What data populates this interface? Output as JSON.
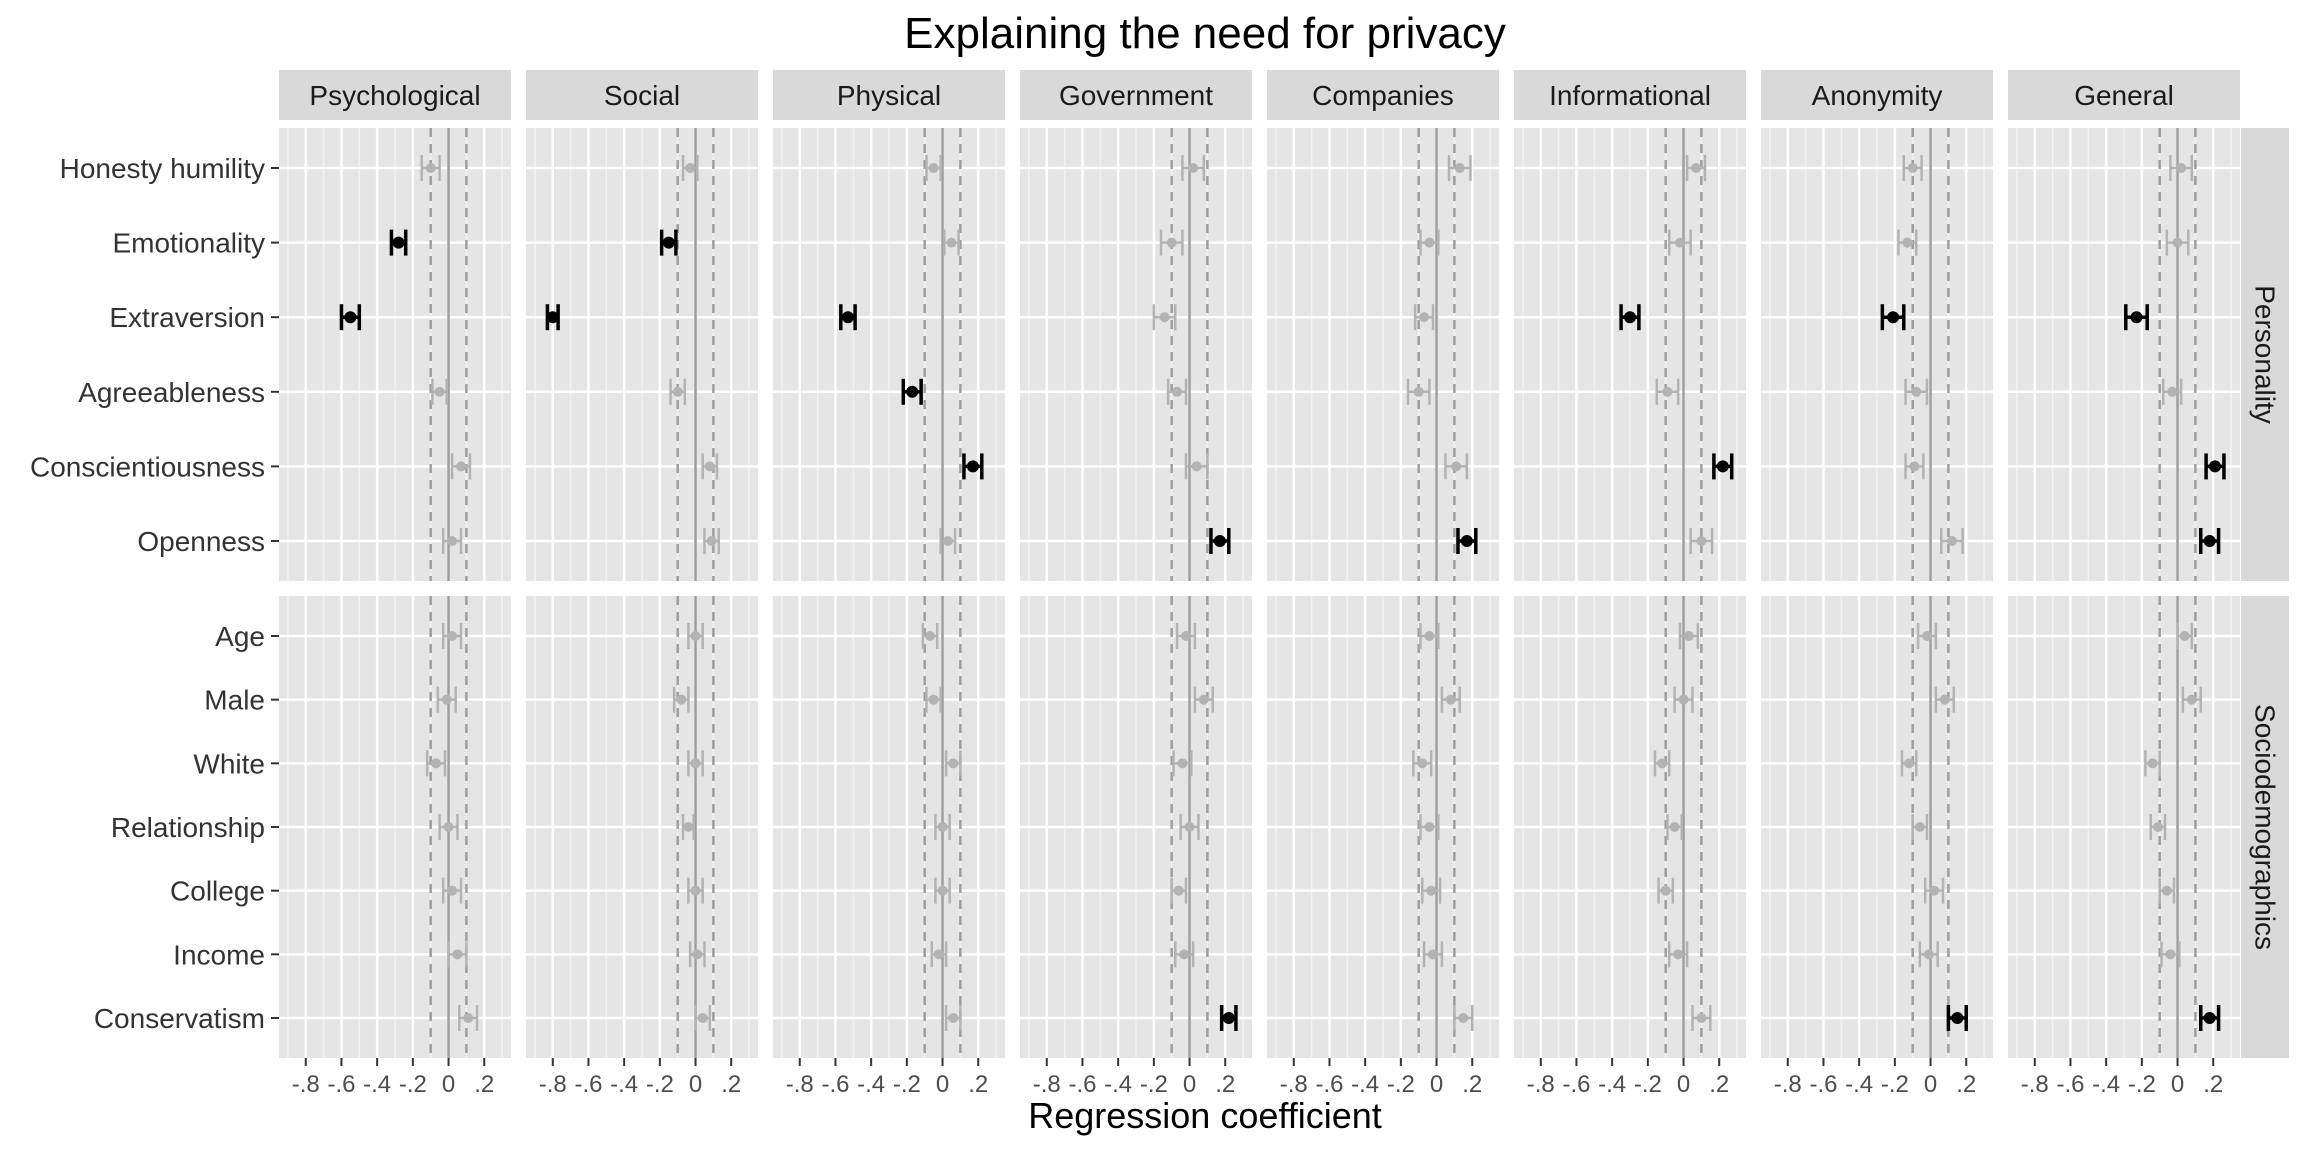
{
  "chart_data": {
    "type": "dot-and-whisker",
    "title": "Explaining the need for privacy",
    "xlabel": "Regression coefficient",
    "xlim": [
      -0.95,
      0.35
    ],
    "xticks": [
      -0.8,
      -0.6,
      -0.4,
      -0.2,
      0,
      0.2
    ],
    "xtick_labels": [
      "-.8",
      "-.6",
      "-.4",
      "-.2",
      "0",
      ".2"
    ],
    "reference_lines": {
      "solid": 0,
      "dashed": [
        -0.1,
        0.1
      ]
    },
    "columns": [
      "Psychological",
      "Social",
      "Physical",
      "Government",
      "Companies",
      "Informational",
      "Anonymity",
      "General"
    ],
    "rows": [
      {
        "name": "Personality",
        "variables": [
          "Honesty humility",
          "Emotionality",
          "Extraversion",
          "Agreeableness",
          "Conscientiousness",
          "Openness"
        ],
        "estimates": {
          "Psychological": [
            [
              -0.1,
              0.05,
              false
            ],
            [
              -0.28,
              0.04,
              true
            ],
            [
              -0.55,
              0.05,
              true
            ],
            [
              -0.05,
              0.04,
              false
            ],
            [
              0.07,
              0.05,
              false
            ],
            [
              0.02,
              0.05,
              false
            ]
          ],
          "Social": [
            [
              -0.03,
              0.04,
              false
            ],
            [
              -0.15,
              0.04,
              true
            ],
            [
              -0.8,
              0.03,
              true
            ],
            [
              -0.1,
              0.04,
              false
            ],
            [
              0.08,
              0.04,
              false
            ],
            [
              0.09,
              0.04,
              false
            ]
          ],
          "Physical": [
            [
              -0.05,
              0.04,
              false
            ],
            [
              0.05,
              0.04,
              false
            ],
            [
              -0.53,
              0.04,
              true
            ],
            [
              -0.17,
              0.05,
              true
            ],
            [
              0.17,
              0.05,
              true
            ],
            [
              0.03,
              0.04,
              false
            ]
          ],
          "Government": [
            [
              0.02,
              0.06,
              false
            ],
            [
              -0.1,
              0.06,
              false
            ],
            [
              -0.14,
              0.06,
              false
            ],
            [
              -0.07,
              0.05,
              false
            ],
            [
              0.04,
              0.06,
              false
            ],
            [
              0.17,
              0.05,
              true
            ]
          ],
          "Companies": [
            [
              0.13,
              0.06,
              false
            ],
            [
              -0.04,
              0.05,
              false
            ],
            [
              -0.07,
              0.05,
              false
            ],
            [
              -0.1,
              0.06,
              false
            ],
            [
              0.11,
              0.06,
              false
            ],
            [
              0.17,
              0.05,
              true
            ]
          ],
          "Informational": [
            [
              0.07,
              0.05,
              false
            ],
            [
              -0.02,
              0.06,
              false
            ],
            [
              -0.3,
              0.05,
              true
            ],
            [
              -0.09,
              0.06,
              false
            ],
            [
              0.22,
              0.05,
              true
            ],
            [
              0.1,
              0.06,
              false
            ]
          ],
          "Anonymity": [
            [
              -0.1,
              0.05,
              false
            ],
            [
              -0.13,
              0.05,
              false
            ],
            [
              -0.21,
              0.06,
              true
            ],
            [
              -0.08,
              0.06,
              false
            ],
            [
              -0.09,
              0.05,
              false
            ],
            [
              0.12,
              0.06,
              false
            ]
          ],
          "General": [
            [
              0.02,
              0.06,
              false
            ],
            [
              0.0,
              0.06,
              false
            ],
            [
              -0.23,
              0.06,
              true
            ],
            [
              -0.03,
              0.05,
              false
            ],
            [
              0.21,
              0.05,
              true
            ],
            [
              0.18,
              0.05,
              true
            ]
          ]
        }
      },
      {
        "name": "Sociodemographics",
        "variables": [
          "Age",
          "Male",
          "White",
          "Relationship",
          "College",
          "Income",
          "Conservatism"
        ],
        "estimates": {
          "Psychological": [
            [
              0.02,
              0.05,
              false
            ],
            [
              -0.01,
              0.05,
              false
            ],
            [
              -0.07,
              0.05,
              false
            ],
            [
              0.0,
              0.05,
              false
            ],
            [
              0.02,
              0.05,
              false
            ],
            [
              0.05,
              0.05,
              false
            ],
            [
              0.11,
              0.05,
              false
            ]
          ],
          "Social": [
            [
              0.0,
              0.04,
              false
            ],
            [
              -0.08,
              0.04,
              false
            ],
            [
              0.0,
              0.04,
              false
            ],
            [
              -0.04,
              0.03,
              false
            ],
            [
              0.0,
              0.04,
              false
            ],
            [
              0.01,
              0.04,
              false
            ],
            [
              0.04,
              0.04,
              false
            ]
          ],
          "Physical": [
            [
              -0.07,
              0.04,
              false
            ],
            [
              -0.05,
              0.04,
              false
            ],
            [
              0.06,
              0.04,
              false
            ],
            [
              0.0,
              0.04,
              false
            ],
            [
              0.0,
              0.04,
              false
            ],
            [
              -0.02,
              0.04,
              false
            ],
            [
              0.06,
              0.04,
              false
            ]
          ],
          "Government": [
            [
              -0.02,
              0.05,
              false
            ],
            [
              0.08,
              0.05,
              false
            ],
            [
              -0.04,
              0.05,
              false
            ],
            [
              0.0,
              0.05,
              false
            ],
            [
              -0.06,
              0.04,
              false
            ],
            [
              -0.03,
              0.05,
              false
            ],
            [
              0.22,
              0.04,
              true
            ]
          ],
          "Companies": [
            [
              -0.04,
              0.05,
              false
            ],
            [
              0.08,
              0.05,
              false
            ],
            [
              -0.08,
              0.05,
              false
            ],
            [
              -0.04,
              0.05,
              false
            ],
            [
              -0.03,
              0.05,
              false
            ],
            [
              -0.02,
              0.05,
              false
            ],
            [
              0.15,
              0.05,
              false
            ]
          ],
          "Informational": [
            [
              0.03,
              0.05,
              false
            ],
            [
              0.0,
              0.05,
              false
            ],
            [
              -0.12,
              0.04,
              false
            ],
            [
              -0.05,
              0.04,
              false
            ],
            [
              -0.1,
              0.04,
              false
            ],
            [
              -0.03,
              0.05,
              false
            ],
            [
              0.1,
              0.05,
              false
            ]
          ],
          "Anonymity": [
            [
              -0.02,
              0.05,
              false
            ],
            [
              0.08,
              0.05,
              false
            ],
            [
              -0.12,
              0.04,
              false
            ],
            [
              -0.06,
              0.04,
              false
            ],
            [
              0.02,
              0.05,
              false
            ],
            [
              -0.01,
              0.05,
              false
            ],
            [
              0.15,
              0.05,
              true
            ]
          ],
          "General": [
            [
              0.04,
              0.04,
              false
            ],
            [
              0.08,
              0.05,
              false
            ],
            [
              -0.14,
              0.04,
              false
            ],
            [
              -0.11,
              0.04,
              false
            ],
            [
              -0.06,
              0.04,
              false
            ],
            [
              -0.04,
              0.05,
              false
            ],
            [
              0.18,
              0.05,
              true
            ]
          ]
        }
      }
    ],
    "colors": {
      "panel": "#e5e5e5",
      "grid_major": "#ffffff",
      "grid_minor": "#f2f2f2",
      "strip": "#d9d9d9",
      "significant": "#000000",
      "nonsignificant": "#b3b3b3",
      "refline": "#9e9e9e"
    }
  }
}
